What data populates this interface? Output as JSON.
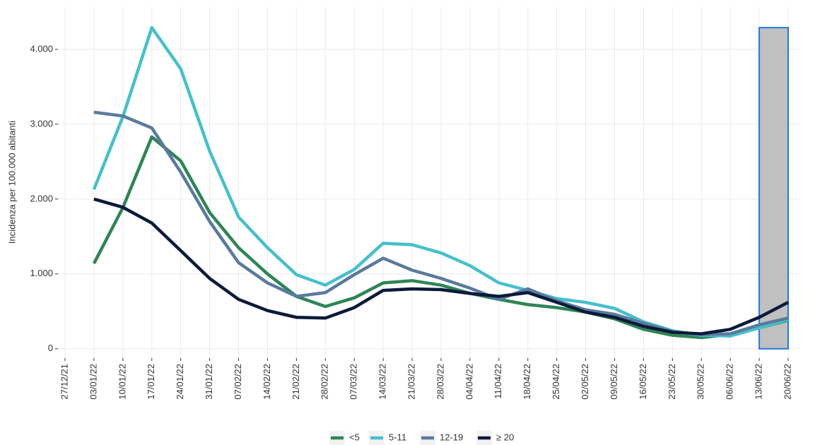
{
  "chart_data": {
    "type": "line",
    "y_label": "Incidenza per 100.000 abitanti",
    "categories": [
      "27/12/21",
      "03/01/22",
      "10/01/22",
      "17/01/22",
      "24/01/22",
      "31/01/22",
      "07/02/22",
      "14/02/22",
      "21/02/22",
      "28/02/22",
      "07/03/22",
      "14/03/22",
      "21/03/22",
      "28/03/22",
      "04/04/22",
      "11/04/22",
      "18/04/22",
      "25/04/22",
      "02/05/22",
      "09/05/22",
      "16/05/22",
      "23/05/22",
      "30/05/22",
      "06/06/22",
      "13/06/22",
      "20/06/22"
    ],
    "series": [
      {
        "name": "<5",
        "color": "#2e8555",
        "values": [
          null,
          1140,
          1885,
          2830,
          2510,
          1820,
          1350,
          1000,
          700,
          565,
          680,
          880,
          910,
          850,
          740,
          660,
          590,
          550,
          490,
          400,
          260,
          180,
          150,
          190,
          280,
          380
        ]
      },
      {
        "name": "5-11",
        "color": "#45c0cc",
        "values": [
          null,
          2130,
          3100,
          4290,
          3740,
          2640,
          1760,
          1350,
          990,
          850,
          1060,
          1410,
          1390,
          1280,
          1110,
          880,
          780,
          670,
          620,
          540,
          360,
          240,
          180,
          170,
          280,
          390
        ]
      },
      {
        "name": "12-19",
        "color": "#5a7a9e",
        "values": [
          null,
          3160,
          3110,
          2950,
          2360,
          1700,
          1150,
          880,
          700,
          750,
          990,
          1210,
          1050,
          940,
          810,
          660,
          800,
          640,
          520,
          460,
          340,
          230,
          190,
          200,
          320,
          410
        ]
      },
      {
        "name": "≥ 20",
        "color": "#0b1a3a",
        "values": [
          null,
          2000,
          1890,
          1680,
          1310,
          940,
          660,
          510,
          420,
          410,
          550,
          780,
          800,
          790,
          740,
          700,
          750,
          620,
          490,
          420,
          300,
          220,
          200,
          260,
          420,
          620
        ]
      }
    ],
    "ylim": [
      -125,
      4565
    ],
    "yticks": [
      0,
      {
        "value": 1000,
        "label": "1.000"
      },
      {
        "value": 2000,
        "label": "2.000"
      },
      {
        "value": 3000,
        "label": "3.000"
      },
      {
        "value": 4000,
        "label": "4.000"
      }
    ],
    "grid": true,
    "legend": "bottom",
    "highlight": {
      "x": [
        24,
        25
      ],
      "y": [
        0,
        4290
      ],
      "color": "#c0c0c0",
      "border": "#1f7ae0"
    }
  }
}
